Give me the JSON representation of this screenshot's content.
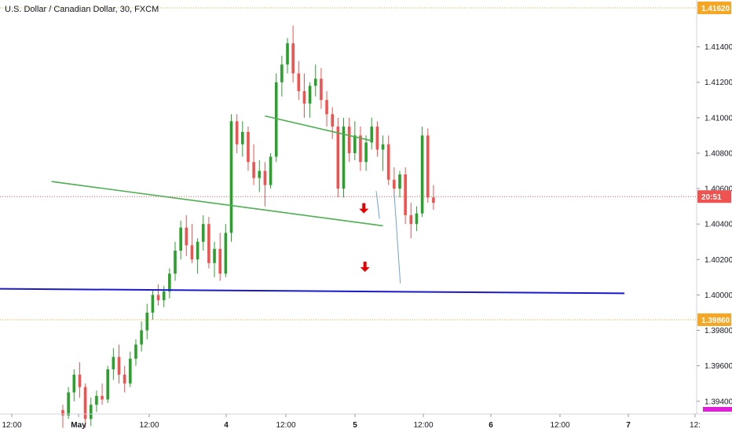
{
  "chart_data": {
    "type": "candlestick",
    "title": "U.S. Dollar / Canadian Dollar, 30, FXCM",
    "y_ticks": [
      "1.41400",
      "1.41200",
      "1.41000",
      "1.40800",
      "1.40600",
      "1.40400",
      "1.40200",
      "1.40000",
      "1.39800",
      "1.39600",
      "1.39400"
    ],
    "x_ticks": [
      "12:00",
      "May",
      "12:00",
      "4",
      "12:00",
      "5",
      "12:00",
      "6",
      "12:00",
      "7",
      "12:"
    ],
    "ylim": [
      1.393,
      1.4163
    ],
    "price_labels": {
      "top": "1.41620",
      "current_countdown": "20:51",
      "bottom": "1.39860"
    },
    "colors": {
      "up": "#26a69a",
      "up_candle": "#2ca02c",
      "down": "#ef5350",
      "channel": "#4caf50",
      "support": "#1a1acc",
      "projection": "#6fa3d8",
      "arrow": "#e60000",
      "level": "#f5a623",
      "current": "#ef5350"
    },
    "candles": [
      [
        1.3935,
        1.3938,
        1.3925,
        1.3932
      ],
      [
        1.3932,
        1.3948,
        1.393,
        1.3945
      ],
      [
        1.3945,
        1.3958,
        1.394,
        1.3955
      ],
      [
        1.3955,
        1.3962,
        1.3942,
        1.3948
      ],
      [
        1.3948,
        1.395,
        1.3925,
        1.393
      ],
      [
        1.393,
        1.3942,
        1.3926,
        1.3938
      ],
      [
        1.3938,
        1.3946,
        1.3934,
        1.3943
      ],
      [
        1.3943,
        1.395,
        1.3938,
        1.3941
      ],
      [
        1.3941,
        1.396,
        1.3939,
        1.3958
      ],
      [
        1.3958,
        1.397,
        1.3952,
        1.3965
      ],
      [
        1.3965,
        1.3972,
        1.395,
        1.3955
      ],
      [
        1.3955,
        1.396,
        1.3945,
        1.395
      ],
      [
        1.395,
        1.3968,
        1.3948,
        1.3964
      ],
      [
        1.3964,
        1.3975,
        1.396,
        1.3972
      ],
      [
        1.3972,
        1.3985,
        1.3968,
        1.398
      ],
      [
        1.398,
        1.3995,
        1.3975,
        1.399
      ],
      [
        1.399,
        1.4003,
        1.3986,
        1.4
      ],
      [
        1.4,
        1.4006,
        1.3994,
        1.3997
      ],
      [
        1.3997,
        1.4005,
        1.3993,
        1.4002
      ],
      [
        1.4002,
        1.4015,
        1.3998,
        1.4012
      ],
      [
        1.4012,
        1.403,
        1.4008,
        1.4025
      ],
      [
        1.4025,
        1.4042,
        1.402,
        1.4038
      ],
      [
        1.4038,
        1.4045,
        1.4022,
        1.4028
      ],
      [
        1.4028,
        1.404,
        1.4018,
        1.402
      ],
      [
        1.402,
        1.4032,
        1.4012,
        1.403
      ],
      [
        1.403,
        1.4045,
        1.4025,
        1.404
      ],
      [
        1.404,
        1.4044,
        1.4015,
        1.4018
      ],
      [
        1.4018,
        1.403,
        1.401,
        1.4026
      ],
      [
        1.4026,
        1.4035,
        1.4008,
        1.4012
      ],
      [
        1.4012,
        1.404,
        1.401,
        1.4035
      ],
      [
        1.4035,
        1.4102,
        1.403,
        1.4098
      ],
      [
        1.4098,
        1.4102,
        1.408,
        1.4085
      ],
      [
        1.4085,
        1.4098,
        1.4078,
        1.4092
      ],
      [
        1.4092,
        1.4095,
        1.407,
        1.4075
      ],
      [
        1.4075,
        1.4085,
        1.4062,
        1.4066
      ],
      [
        1.4066,
        1.4076,
        1.4058,
        1.407
      ],
      [
        1.407,
        1.4075,
        1.405,
        1.4062
      ],
      [
        1.4062,
        1.408,
        1.406,
        1.4078
      ],
      [
        1.4078,
        1.4125,
        1.4075,
        1.412
      ],
      [
        1.412,
        1.4135,
        1.4112,
        1.413
      ],
      [
        1.413,
        1.4145,
        1.4125,
        1.4142
      ],
      [
        1.4142,
        1.4152,
        1.412,
        1.4125
      ],
      [
        1.4125,
        1.4132,
        1.411,
        1.4115
      ],
      [
        1.4115,
        1.4125,
        1.41,
        1.4108
      ],
      [
        1.4108,
        1.412,
        1.41,
        1.4118
      ],
      [
        1.4118,
        1.413,
        1.4112,
        1.4122
      ],
      [
        1.4122,
        1.4128,
        1.4105,
        1.411
      ],
      [
        1.411,
        1.4115,
        1.4095,
        1.4102
      ],
      [
        1.4102,
        1.4106,
        1.4088,
        1.4095
      ],
      [
        1.4095,
        1.41,
        1.4055,
        1.406
      ],
      [
        1.406,
        1.41,
        1.4055,
        1.4095
      ],
      [
        1.4095,
        1.41,
        1.4075,
        1.408
      ],
      [
        1.408,
        1.4098,
        1.4076,
        1.409
      ],
      [
        1.409,
        1.4095,
        1.407,
        1.4075
      ],
      [
        1.4075,
        1.409,
        1.407,
        1.4086
      ],
      [
        1.4086,
        1.41,
        1.4082,
        1.4095
      ],
      [
        1.4095,
        1.4098,
        1.4078,
        1.4082
      ],
      [
        1.4082,
        1.409,
        1.407,
        1.4085
      ],
      [
        1.4085,
        1.409,
        1.4062,
        1.4065
      ],
      [
        1.4065,
        1.4072,
        1.4055,
        1.406
      ],
      [
        1.406,
        1.407,
        1.4055,
        1.4068
      ],
      [
        1.4068,
        1.4072,
        1.404,
        1.4045
      ],
      [
        1.4045,
        1.4052,
        1.4032,
        1.404
      ],
      [
        1.404,
        1.405,
        1.4036,
        1.4046
      ],
      [
        1.4046,
        1.4095,
        1.4044,
        1.409
      ],
      [
        1.409,
        1.4094,
        1.4052,
        1.4055
      ],
      [
        1.4055,
        1.4062,
        1.4048,
        1.4052
      ]
    ],
    "channel_upper": [
      [
        36,
        1.4101
      ],
      [
        55,
        1.4087
      ]
    ],
    "channel_lower": [
      [
        -2,
        1.4064
      ],
      [
        57,
        1.4039
      ]
    ],
    "support_line": [
      [
        -70,
        1.40048
      ],
      [
        100,
        1.40009
      ]
    ],
    "projection_lines": [
      [
        [
          55.8,
          1.40586
        ],
        [
          56.4,
          1.4043
        ]
      ],
      [
        [
          59.0,
          1.40577
        ],
        [
          60.1,
          1.40065
        ]
      ]
    ],
    "arrows": [
      [
        53.6,
        1.4046
      ],
      [
        53.8,
        1.4013
      ]
    ],
    "level_price": 1.40555,
    "top_level_price": 1.4162,
    "bottom_level_price": 1.3986
  }
}
